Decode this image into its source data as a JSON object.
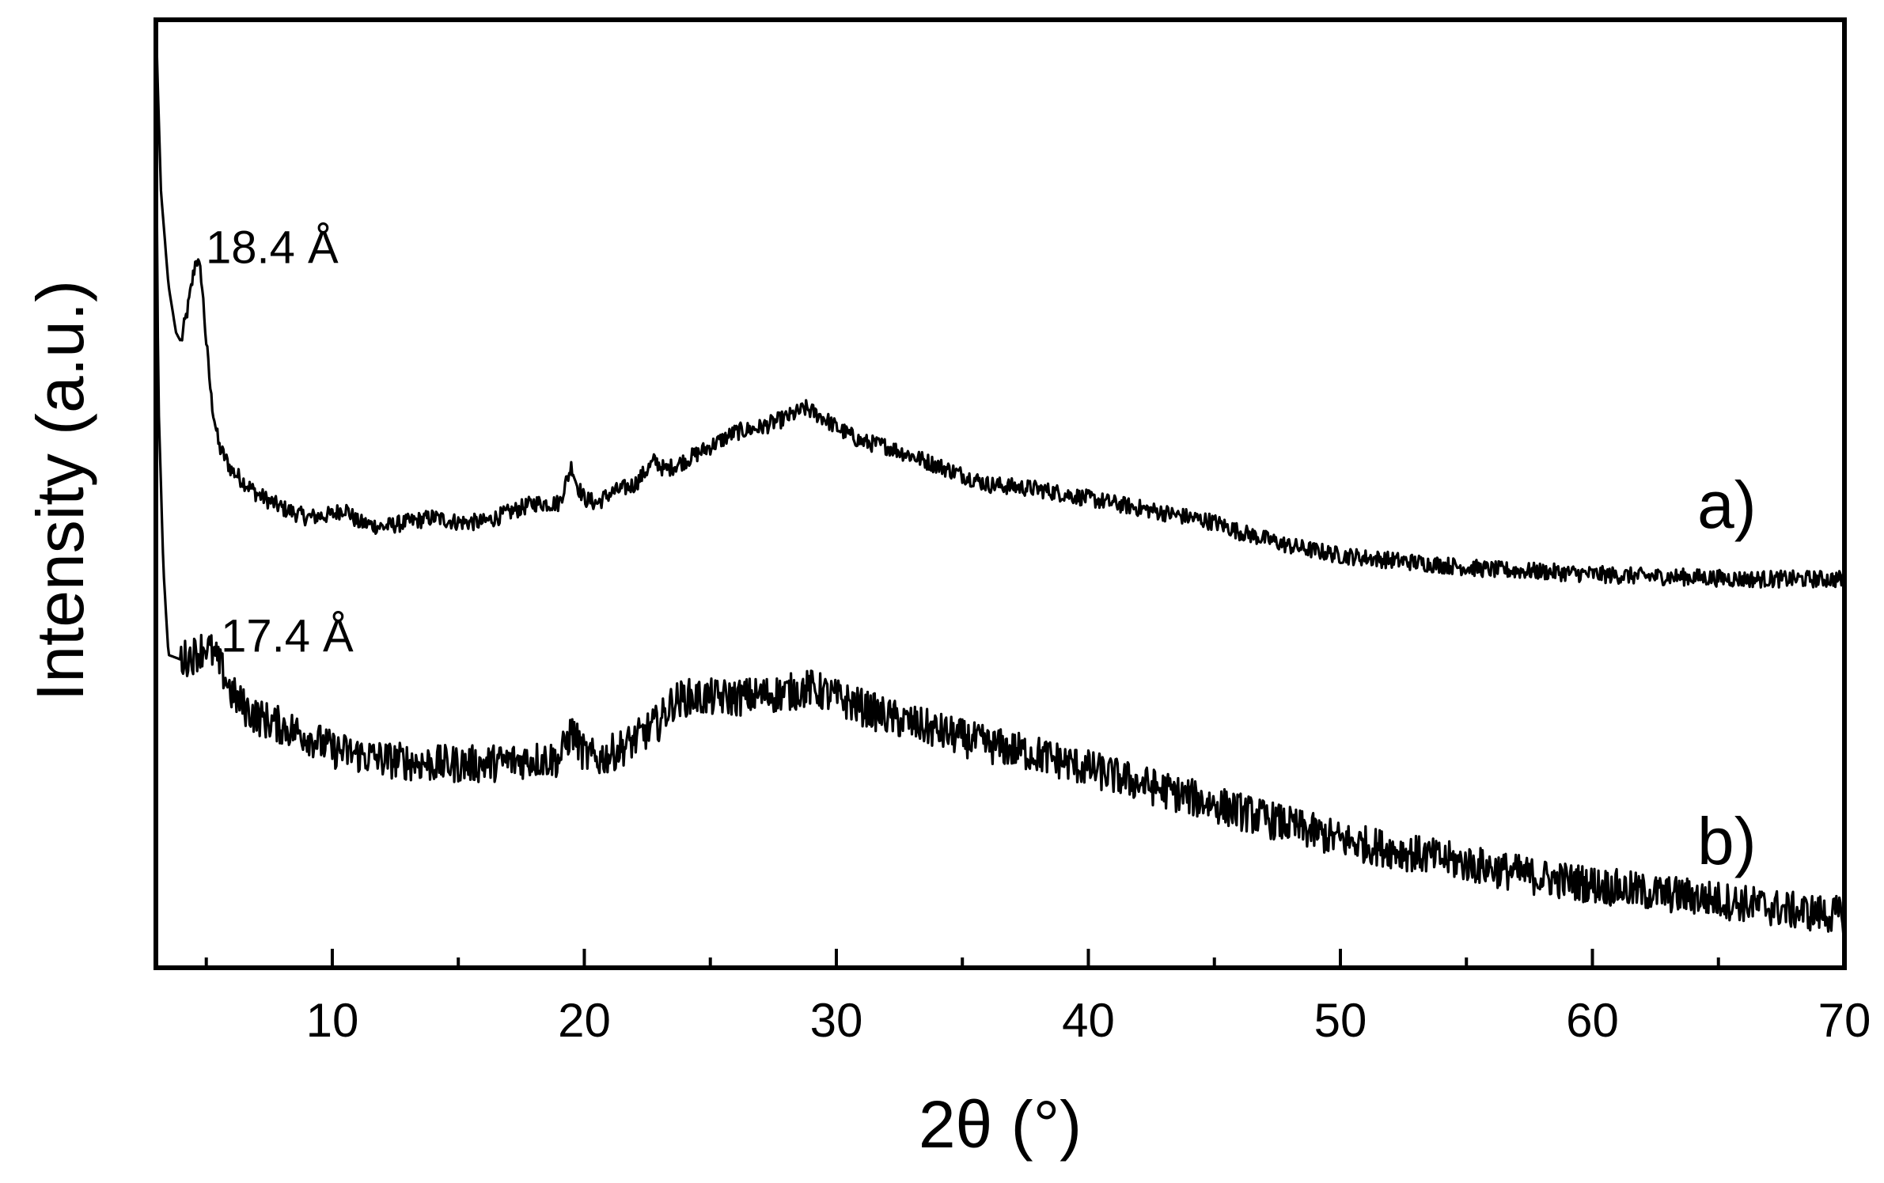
{
  "chart_data": {
    "type": "line",
    "xlabel": "2θ (°)",
    "ylabel": "Intensity (a.u.)",
    "xlim": [
      3,
      70
    ],
    "ylim": [
      0,
      100
    ],
    "x_ticks": [
      10,
      20,
      30,
      40,
      50,
      60,
      70
    ],
    "x_minor_step": 5,
    "y_ticks_shown": false,
    "grid": false,
    "legend": "none",
    "series": [
      {
        "name": "a)",
        "noise": 0.9,
        "x": [
          3.0,
          3.2,
          3.5,
          3.8,
          4.0,
          4.3,
          4.6,
          4.8,
          5.0,
          5.2,
          5.5,
          6.0,
          7.0,
          8.0,
          9.0,
          10.0,
          10.5,
          11.0,
          12.0,
          13.0,
          14.0,
          15.0,
          16.0,
          17.0,
          18.0,
          19.0,
          19.5,
          19.7,
          20.0,
          20.5,
          21.0,
          22.0,
          22.8,
          23.2,
          24.0,
          25.0,
          26.0,
          27.0,
          28.0,
          28.8,
          29.5,
          30.0,
          31.0,
          32.0,
          33.0,
          34.0,
          35.0,
          36.0,
          38.0,
          40.0,
          42.0,
          44.0,
          45.0,
          46.0,
          48.0,
          50.0,
          52.0,
          54.0,
          56.0,
          58.0,
          60.0,
          62.0,
          64.0,
          66.0,
          68.0,
          70.0
        ],
        "y": [
          100,
          82,
          72,
          67,
          66,
          70,
          75,
          73,
          66,
          60,
          55,
          52.5,
          50,
          48.5,
          47.5,
          47.8,
          48.5,
          47,
          46.5,
          47,
          47.5,
          47,
          47,
          48,
          49,
          49,
          53,
          51,
          49.5,
          49,
          50,
          51,
          53.5,
          52.5,
          53.5,
          55,
          56.5,
          57,
          58,
          59,
          58,
          57,
          55.5,
          55,
          54,
          53,
          52,
          51,
          50.5,
          49.5,
          48.5,
          47.5,
          47,
          46,
          44.5,
          43.5,
          43,
          42.5,
          42,
          41.8,
          41.5,
          41.3,
          41.2,
          41,
          41,
          41
        ]
      },
      {
        "name": "b)",
        "noise": 2.0,
        "x": [
          3.0,
          3.1,
          3.3,
          3.5,
          4.0,
          4.5,
          5.0,
          5.3,
          5.7,
          6.0,
          6.5,
          7.0,
          8.0,
          9.0,
          10.0,
          11.0,
          12.0,
          14.0,
          16.0,
          18.0,
          19.0,
          19.5,
          19.7,
          20.0,
          20.5,
          21.0,
          22.0,
          23.0,
          23.5,
          24.0,
          26.0,
          28.0,
          29.0,
          30.0,
          32.0,
          34.0,
          36.0,
          38.0,
          40.0,
          42.0,
          44.0,
          46.0,
          48.0,
          50.0,
          52.0,
          54.0,
          56.0,
          58.0,
          60.0,
          62.0,
          64.0,
          66.0,
          68.0,
          70.0
        ],
        "y": [
          92,
          60,
          42,
          33,
          32.5,
          33,
          34,
          33,
          31,
          29,
          27.5,
          26.5,
          25.5,
          24.5,
          23,
          22.5,
          22,
          21.5,
          21.5,
          22,
          22,
          25,
          24,
          22.5,
          22,
          22.5,
          24,
          26,
          28,
          28.5,
          28.5,
          29,
          29.5,
          28.5,
          26.5,
          25,
          23.5,
          22.5,
          21,
          19.5,
          18,
          16.5,
          15,
          13.5,
          12.5,
          11.5,
          10.5,
          9.5,
          8.8,
          8,
          7.5,
          6.8,
          6,
          5.5
        ]
      }
    ],
    "annotations": [
      {
        "text": "18.4 Å",
        "x": 4.6,
        "y": 77.5
      },
      {
        "text": "17.4 Å",
        "x": 5.2,
        "y": 36.5
      }
    ]
  }
}
